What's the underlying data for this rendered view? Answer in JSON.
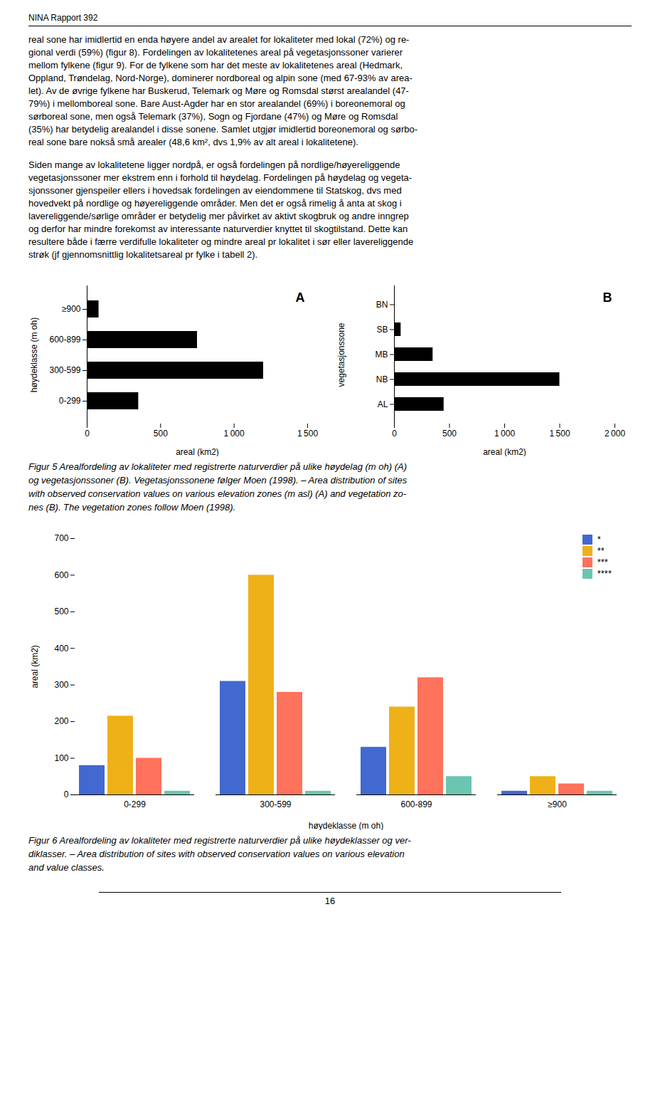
{
  "header": "NINA Rapport 392",
  "paragraphs": [
    [
      "real sone har imidlertid en enda høyere andel av arealet for lokaliteter med lokal (72%) og re-",
      "gional verdi (59%) (​figur 8​). Fordelingen av lokalitetenes areal på vegetasjonssoner varierer",
      "mellom fylkene (​figur 9​). For de fylkene som har det meste av lokalitetenes areal (Hedmark,",
      "Oppland, Trøndelag, Nord-Norge), dominerer nordboreal og alpin sone (med 67-93% av area-",
      "let). Av de øvrige fylkene har Buskerud, Telemark og Møre og Romsdal størst arealandel (47-",
      "79%) i mellomboreal sone. Bare Aust-Agder har en stor arealandel (69%) i boreonemoral og",
      "sørboreal sone, men også Telemark (37%), Sogn og Fjordane (47%) og Møre og Romsdal",
      "(35%) har betydelig arealandel i disse sonene. Samlet utgjør imidlertid boreonemoral og sørbo-",
      "real sone bare nokså små arealer (48,6 km², dvs 1,9% av alt areal i lokalitetene)."
    ],
    [
      "Siden mange av lokalitetene ligger nordpå, er også fordelingen på nordlige/høyereliggende",
      "vegetasjonssoner mer ekstrem enn i forhold til høydelag. Fordelingen på høydelag og vegeta-",
      "sjonssoner gjenspeiler ellers i hovedsak fordelingen av eiendommene til Statskog, dvs med",
      "hovedvekt på nordlige og høyereliggende områder. Men det er også rimelig å anta at skog i",
      "lavereliggende/sørlige områder er betydelig mer påvirket av aktivt skogbruk og andre inngrep",
      "og derfor har mindre forekomst av interessante naturverdier knyttet til skogtilstand. Dette kan",
      "resultere både i færre verdifulle lokaliteter og mindre areal pr lokalitet i sør eller lavereliggende",
      "strøk (jf gjennomsnittlig lokalitetsareal pr fylke i tabell 2)."
    ]
  ],
  "page_number": "16",
  "chart_data": [
    {
      "type": "bar",
      "orientation": "horizontal",
      "categories": [
        "0-299",
        "300-599",
        "600-899",
        "≥900"
      ],
      "values": [
        350,
        1200,
        750,
        80
      ],
      "xlabel": "areal (km2)",
      "ylabel": "høydeklasse (m oh)",
      "xlim": [
        0,
        1500
      ],
      "xticks": [
        0,
        500,
        {
          "value": 1000,
          "label": "1 000"
        },
        {
          "value": 1500,
          "label": "1 500"
        }
      ],
      "annotations": [
        "A"
      ]
    },
    {
      "type": "bar",
      "orientation": "horizontal",
      "categories": [
        "AL",
        "NB",
        "MB",
        "SB",
        "BN"
      ],
      "values": [
        450,
        1500,
        350,
        60,
        5
      ],
      "xlabel": "areal (km2)",
      "ylabel": "vegetasjonssone",
      "xlim": [
        0,
        2000
      ],
      "xticks": [
        0,
        500,
        {
          "value": 1000,
          "label": "1 000"
        },
        {
          "value": 1500,
          "label": "1 500"
        },
        {
          "value": 2000,
          "label": "2 000"
        }
      ],
      "annotations": [
        "B"
      ],
      "caption": "​Figur 5​ ​Arealfordeling av lokaliteter med registrerte naturverdier på ulike høydelag (m oh) (A)\nog vegetasjonssoner (B). Vegetasjonssonene følger Moen (1998). – Area distribution of sites\nwith observed conservation values on various elevation zones (m asl) (A) and vegetation zo-\nnes (B). The vegetation zones follow Moen (1998)."
    },
    {
      "type": "bar",
      "categories": [
        "0-299",
        "300-599",
        "600-899",
        "≥900"
      ],
      "series": [
        {
          "name": "*",
          "values": [
            80,
            310,
            130,
            10
          ]
        },
        {
          "name": "**",
          "values": [
            215,
            600,
            240,
            50
          ]
        },
        {
          "name": "***",
          "values": [
            100,
            280,
            320,
            30
          ]
        },
        {
          "name": "****",
          "values": [
            10,
            10,
            50,
            10
          ]
        }
      ],
      "xlabel": "høydeklasse (m oh)",
      "ylabel": "areal (km2)",
      "ylim": [
        0,
        700
      ],
      "yticks": [
        0,
        100,
        200,
        300,
        400,
        500,
        600,
        700
      ],
      "legend": "upper right",
      "caption": "​Figur 6​ ​Arealfordeling av lokaliteter med registrerte naturverdier på ulike høydeklasser og ver-\ndiklasser. – Area distribution of sites with observed conservation values on various elevation\nand value classes."
    }
  ]
}
